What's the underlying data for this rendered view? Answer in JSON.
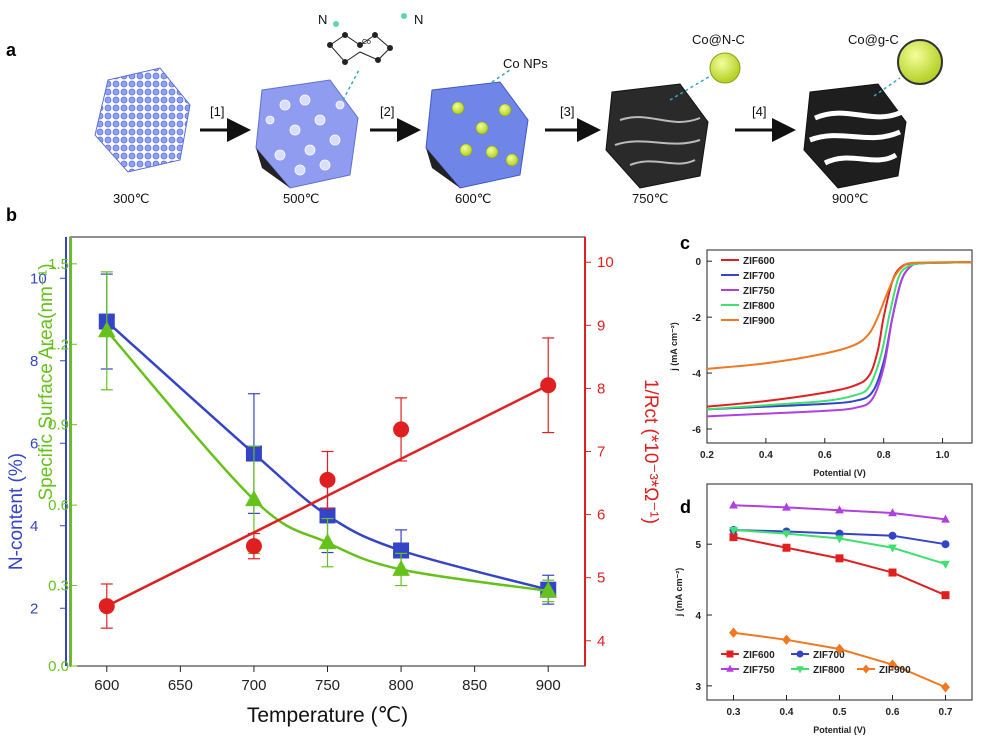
{
  "panel_labels": {
    "a": "a",
    "b": "b",
    "c": "c",
    "d": "d"
  },
  "scheme": {
    "stages": [
      "300℃",
      "500℃",
      "600℃",
      "750℃",
      "900℃"
    ],
    "steps": [
      "[1]",
      "[2]",
      "[3]",
      "[4]"
    ],
    "annotations": {
      "conps": "Co NPs",
      "conc": "Co@N-C",
      "cogc": "Co@g-C",
      "n": "N",
      "co": "Co"
    }
  },
  "chart_data": [
    {
      "id": "b",
      "type": "line",
      "xlabel": "Temperature (℃)",
      "xlim": [
        575,
        925
      ],
      "xticks": [
        600,
        650,
        700,
        750,
        800,
        850,
        900
      ],
      "axes": {
        "n_content": {
          "label": "N-content (%)",
          "ylim": [
            0.6,
            11
          ],
          "ticks": [
            2,
            4,
            6,
            8,
            10
          ],
          "color": "#3344c8"
        },
        "ssa": {
          "label": "Specific Surface Area(nm⁻¹)",
          "ylim": [
            0,
            1.6
          ],
          "ticks": [
            "0.0",
            "0.3",
            "0.6",
            "0.9",
            "1.2",
            "1.5"
          ],
          "color": "#66c21a"
        },
        "rct": {
          "label": "1/Rct (*10⁻³*Ω⁻¹)",
          "ylim": [
            3.6,
            10.4
          ],
          "ticks": [
            4,
            5,
            6,
            7,
            8,
            9,
            10
          ],
          "color": "#e02020"
        }
      },
      "series": [
        {
          "axis": "n_content",
          "marker": "square",
          "x": [
            600,
            700,
            750,
            800,
            900
          ],
          "y": [
            8.95,
            5.75,
            4.25,
            3.4,
            2.45
          ],
          "err": [
            1.15,
            1.45,
            0.9,
            0.5,
            0.35
          ]
        },
        {
          "axis": "ssa",
          "marker": "triangle",
          "x": [
            600,
            700,
            750,
            800,
            900
          ],
          "y": [
            1.25,
            0.62,
            0.46,
            0.36,
            0.28
          ],
          "err": [
            0.22,
            0.2,
            0.09,
            0.06,
            0.04
          ]
        },
        {
          "axis": "rct",
          "marker": "circle",
          "x": [
            600,
            700,
            750,
            800,
            900
          ],
          "y": [
            4.55,
            5.5,
            6.55,
            7.35,
            8.05
          ],
          "err": [
            0.35,
            0.2,
            0.45,
            0.5,
            0.75
          ]
        }
      ]
    },
    {
      "id": "c",
      "type": "line",
      "xlabel": "Potential (V)",
      "ylabel": "j (mA cm⁻²)",
      "xlim": [
        0.2,
        1.1
      ],
      "ylim": [
        -6.5,
        0.4
      ],
      "xticks": [
        "0.2",
        "0.4",
        "0.6",
        "0.8",
        "1.0"
      ],
      "yticks": [
        "0",
        "-2",
        "-4",
        "-6"
      ],
      "legend_position": "top-left",
      "series": [
        {
          "name": "ZIF600",
          "color": "#e02020",
          "x": [
            0.2,
            0.4,
            0.6,
            0.7,
            0.75,
            0.78,
            0.8,
            0.83,
            0.86,
            0.9,
            1.0,
            1.1
          ],
          "y": [
            -5.2,
            -5.0,
            -4.7,
            -4.45,
            -4.1,
            -3.2,
            -2.0,
            -0.7,
            -0.2,
            -0.08,
            -0.05,
            -0.04
          ]
        },
        {
          "name": "ZIF700",
          "color": "#3344c8",
          "x": [
            0.2,
            0.4,
            0.6,
            0.7,
            0.76,
            0.8,
            0.83,
            0.86,
            0.89,
            0.92,
            1.0,
            1.1
          ],
          "y": [
            -5.3,
            -5.2,
            -5.1,
            -5.0,
            -4.7,
            -3.6,
            -2.0,
            -0.7,
            -0.2,
            -0.08,
            -0.05,
            -0.04
          ]
        },
        {
          "name": "ZIF750",
          "color": "#b040e0",
          "x": [
            0.2,
            0.4,
            0.6,
            0.7,
            0.76,
            0.8,
            0.83,
            0.86,
            0.89,
            0.92,
            1.0,
            1.1
          ],
          "y": [
            -5.55,
            -5.45,
            -5.35,
            -5.25,
            -4.95,
            -3.8,
            -2.0,
            -0.7,
            -0.2,
            -0.08,
            -0.05,
            -0.04
          ]
        },
        {
          "name": "ZIF800",
          "color": "#40e070",
          "x": [
            0.2,
            0.4,
            0.6,
            0.7,
            0.75,
            0.79,
            0.82,
            0.85,
            0.88,
            0.92,
            1.0,
            1.1
          ],
          "y": [
            -5.3,
            -5.15,
            -5.0,
            -4.8,
            -4.5,
            -3.4,
            -1.9,
            -0.6,
            -0.2,
            -0.08,
            -0.05,
            -0.04
          ]
        },
        {
          "name": "ZIF900",
          "color": "#f07820",
          "x": [
            0.2,
            0.4,
            0.6,
            0.7,
            0.75,
            0.78,
            0.81,
            0.84,
            0.87,
            0.9,
            1.0,
            1.1
          ],
          "y": [
            -3.85,
            -3.65,
            -3.3,
            -3.0,
            -2.6,
            -2.0,
            -1.2,
            -0.5,
            -0.15,
            -0.06,
            -0.04,
            -0.03
          ]
        }
      ]
    },
    {
      "id": "d",
      "type": "line",
      "xlabel": "Potential (V)",
      "ylabel": "j (mA cm⁻²)",
      "xlim": [
        0.25,
        0.75
      ],
      "ylim": [
        2.8,
        5.85
      ],
      "xticks": [
        "0.3",
        "0.4",
        "0.5",
        "0.6",
        "0.7"
      ],
      "yticks": [
        "3",
        "4",
        "5"
      ],
      "legend_position": "bottom",
      "series": [
        {
          "name": "ZIF600",
          "color": "#e02020",
          "marker": "square",
          "x": [
            0.3,
            0.4,
            0.5,
            0.6,
            0.7
          ],
          "y": [
            5.1,
            4.95,
            4.8,
            4.6,
            4.28
          ]
        },
        {
          "name": "ZIF700",
          "color": "#3344c8",
          "marker": "circle",
          "x": [
            0.3,
            0.4,
            0.5,
            0.6,
            0.7
          ],
          "y": [
            5.2,
            5.18,
            5.15,
            5.12,
            5.0
          ]
        },
        {
          "name": "ZIF750",
          "color": "#b040e0",
          "marker": "triangle",
          "x": [
            0.3,
            0.4,
            0.5,
            0.6,
            0.7
          ],
          "y": [
            5.55,
            5.52,
            5.48,
            5.44,
            5.35
          ]
        },
        {
          "name": "ZIF800",
          "color": "#40e070",
          "marker": "triangle-down",
          "x": [
            0.3,
            0.4,
            0.5,
            0.6,
            0.7
          ],
          "y": [
            5.2,
            5.15,
            5.08,
            4.95,
            4.72
          ]
        },
        {
          "name": "ZIF900",
          "color": "#f07820",
          "marker": "diamond",
          "x": [
            0.3,
            0.4,
            0.5,
            0.6,
            0.7
          ],
          "y": [
            3.75,
            3.65,
            3.52,
            3.3,
            2.98
          ]
        }
      ]
    }
  ]
}
